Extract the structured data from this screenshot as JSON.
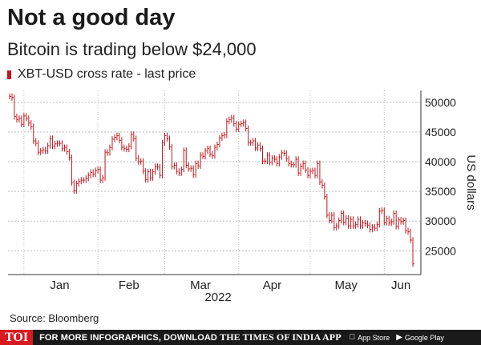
{
  "header": {
    "title": "Not a good day",
    "subtitle": "Bitcoin is trading below $24,000"
  },
  "footer": {
    "source": "Source: Bloomberg",
    "logo": "TOI",
    "promo_text": "FOR MORE INFOGRAPHICS, DOWNLOAD",
    "promo_brand": "THE TIMES OF INDIA APP",
    "app_store": "App Store",
    "google_play": "Google Play"
  },
  "colors": {
    "series": "#c4161c",
    "grid": "#bfbfbf",
    "axis": "#333333"
  },
  "chart_data": {
    "type": "line",
    "title": "Not a good day",
    "subtitle": "Bitcoin is trading below $24,000",
    "ylabel": "US dollars",
    "xlabel": "2022",
    "ylim": [
      21000,
      52000
    ],
    "yticks": [
      25000,
      30000,
      35000,
      40000,
      45000,
      50000
    ],
    "ytick_labels": [
      "25000",
      "30000",
      "35000",
      "40000",
      "45000",
      "50000"
    ],
    "xticks": [
      "Jan",
      "Feb",
      "Mar",
      "Apr",
      "May",
      "Jun"
    ],
    "grid": true,
    "legend_position": "top-left",
    "series": [
      {
        "name": "XBT-USD cross rate - last price",
        "x": [
          "2021-12-26",
          "2021-12-27",
          "2021-12-28",
          "2021-12-29",
          "2021-12-30",
          "2021-12-31",
          "2022-01-01",
          "2022-01-02",
          "2022-01-03",
          "2022-01-04",
          "2022-01-05",
          "2022-01-06",
          "2022-01-07",
          "2022-01-08",
          "2022-01-09",
          "2022-01-10",
          "2022-01-11",
          "2022-01-12",
          "2022-01-13",
          "2022-01-14",
          "2022-01-15",
          "2022-01-16",
          "2022-01-17",
          "2022-01-18",
          "2022-01-19",
          "2022-01-20",
          "2022-01-21",
          "2022-01-22",
          "2022-01-23",
          "2022-01-24",
          "2022-01-25",
          "2022-01-26",
          "2022-01-27",
          "2022-01-28",
          "2022-01-29",
          "2022-01-30",
          "2022-01-31",
          "2022-02-01",
          "2022-02-02",
          "2022-02-03",
          "2022-02-04",
          "2022-02-05",
          "2022-02-06",
          "2022-02-07",
          "2022-02-08",
          "2022-02-09",
          "2022-02-10",
          "2022-02-11",
          "2022-02-12",
          "2022-02-13",
          "2022-02-14",
          "2022-02-15",
          "2022-02-16",
          "2022-02-17",
          "2022-02-18",
          "2022-02-19",
          "2022-02-20",
          "2022-02-21",
          "2022-02-22",
          "2022-02-23",
          "2022-02-24",
          "2022-02-25",
          "2022-02-26",
          "2022-02-27",
          "2022-02-28",
          "2022-03-01",
          "2022-03-02",
          "2022-03-03",
          "2022-03-04",
          "2022-03-05",
          "2022-03-06",
          "2022-03-07",
          "2022-03-08",
          "2022-03-09",
          "2022-03-10",
          "2022-03-11",
          "2022-03-12",
          "2022-03-13",
          "2022-03-14",
          "2022-03-15",
          "2022-03-16",
          "2022-03-17",
          "2022-03-18",
          "2022-03-19",
          "2022-03-20",
          "2022-03-21",
          "2022-03-22",
          "2022-03-23",
          "2022-03-24",
          "2022-03-25",
          "2022-03-26",
          "2022-03-27",
          "2022-03-28",
          "2022-03-29",
          "2022-03-30",
          "2022-03-31",
          "2022-04-01",
          "2022-04-02",
          "2022-04-03",
          "2022-04-04",
          "2022-04-05",
          "2022-04-06",
          "2022-04-07",
          "2022-04-08",
          "2022-04-09",
          "2022-04-10",
          "2022-04-11",
          "2022-04-12",
          "2022-04-13",
          "2022-04-14",
          "2022-04-15",
          "2022-04-16",
          "2022-04-17",
          "2022-04-18",
          "2022-04-19",
          "2022-04-20",
          "2022-04-21",
          "2022-04-22",
          "2022-04-23",
          "2022-04-24",
          "2022-04-25",
          "2022-04-26",
          "2022-04-27",
          "2022-04-28",
          "2022-04-29",
          "2022-04-30",
          "2022-05-01",
          "2022-05-02",
          "2022-05-03",
          "2022-05-04",
          "2022-05-05",
          "2022-05-06",
          "2022-05-07",
          "2022-05-08",
          "2022-05-09",
          "2022-05-10",
          "2022-05-11",
          "2022-05-12",
          "2022-05-13",
          "2022-05-14",
          "2022-05-15",
          "2022-05-16",
          "2022-05-17",
          "2022-05-18",
          "2022-05-19",
          "2022-05-20",
          "2022-05-21",
          "2022-05-22",
          "2022-05-23",
          "2022-05-24",
          "2022-05-25",
          "2022-05-26",
          "2022-05-27",
          "2022-05-28",
          "2022-05-29",
          "2022-05-30",
          "2022-05-31",
          "2022-06-01",
          "2022-06-02",
          "2022-06-03",
          "2022-06-04",
          "2022-06-05",
          "2022-06-06",
          "2022-06-07",
          "2022-06-08",
          "2022-06-09",
          "2022-06-10",
          "2022-06-11",
          "2022-06-12",
          "2022-06-13"
        ],
        "values": [
          51000,
          50800,
          47600,
          47100,
          47300,
          46300,
          47700,
          47300,
          46500,
          45900,
          43500,
          43100,
          41600,
          41800,
          42000,
          41800,
          42700,
          43900,
          42600,
          43000,
          43100,
          43100,
          42200,
          42400,
          41700,
          40700,
          36500,
          35100,
          36300,
          36700,
          36900,
          36900,
          37200,
          37700,
          38200,
          37900,
          38500,
          38700,
          36900,
          37300,
          41600,
          41500,
          42400,
          43800,
          44100,
          44400,
          43600,
          42400,
          42200,
          42100,
          42600,
          44600,
          43900,
          40600,
          40000,
          40100,
          38400,
          37000,
          38300,
          37300,
          38300,
          39200,
          39100,
          37700,
          43200,
          44400,
          43900,
          42500,
          39200,
          39400,
          38400,
          38100,
          38700,
          41900,
          39400,
          38800,
          38900,
          37800,
          39700,
          39300,
          41100,
          40900,
          41800,
          42200,
          41300,
          41000,
          42400,
          42900,
          44000,
          44400,
          44500,
          46800,
          47100,
          47400,
          46400,
          45500,
          46300,
          46400,
          46600,
          45600,
          43200,
          43200,
          43500,
          42300,
          42800,
          42200,
          40100,
          40100,
          41100,
          39900,
          40600,
          40400,
          39700,
          40800,
          41500,
          41400,
          40500,
          39700,
          39500,
          39500,
          40400,
          38100,
          39200,
          39700,
          38600,
          37700,
          38400,
          38500,
          37700,
          39700,
          36600,
          36000,
          34100,
          31000,
          30100,
          31000,
          28900,
          29200,
          30100,
          31300,
          29800,
          30500,
          29200,
          30300,
          29200,
          29400,
          30300,
          29200,
          29700,
          29600,
          29300,
          28600,
          29000,
          28800,
          29400,
          31700,
          31800,
          29800,
          30400,
          29700,
          29900,
          31300,
          29100,
          30200,
          29900,
          30100,
          28400,
          28200,
          26800,
          22800
        ]
      }
    ],
    "annotations": [
      "2022"
    ]
  }
}
